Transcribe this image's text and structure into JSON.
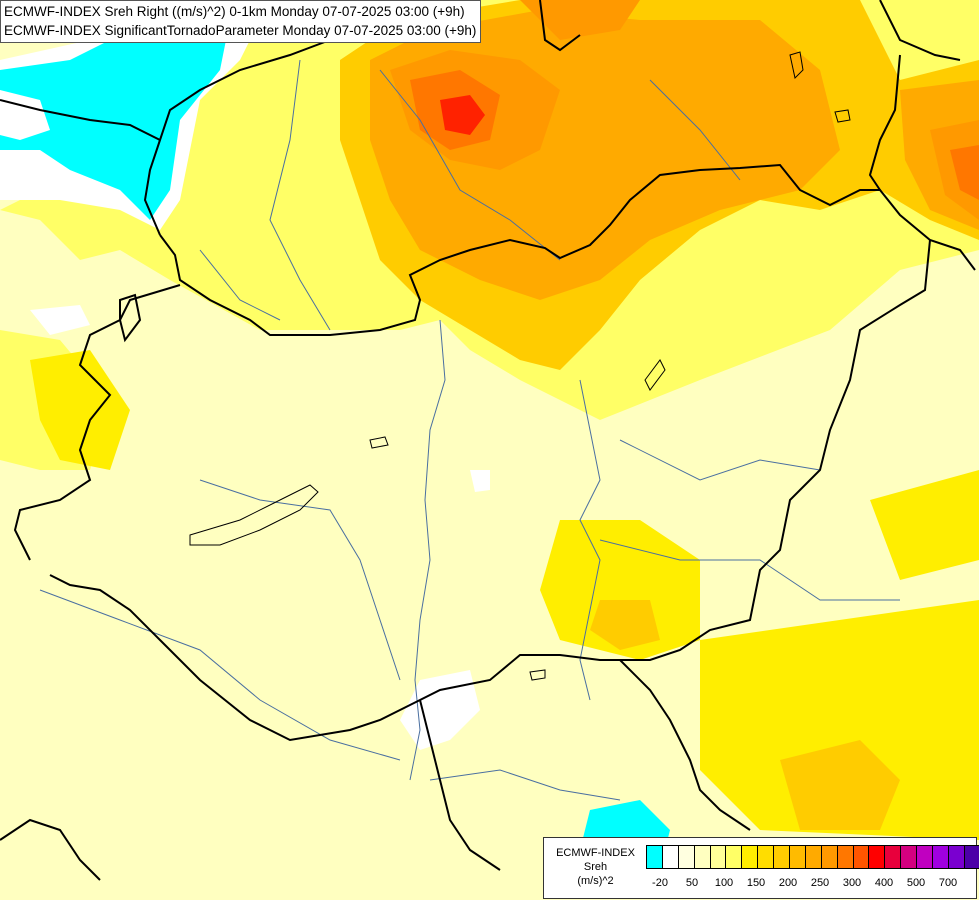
{
  "title_lines": [
    "ECMWF-INDEX Sreh Right ((m/s)^2) 0-1km Monday 07-07-2025 03:00 (+9h)",
    "ECMWF-INDEX SignificantTornadoParameter Monday 07-07-2025 03:00 (+9h)"
  ],
  "legend": {
    "title_lines": [
      "ECMWF-INDEX",
      "Sreh",
      "(m/s)^2"
    ],
    "colors": [
      "#00ffff",
      "#ffffff",
      "#ffffe0",
      "#ffffc0",
      "#ffff99",
      "#ffff66",
      "#ffee00",
      "#ffdd00",
      "#ffcc00",
      "#ffbb00",
      "#ffaa00",
      "#ff9900",
      "#ff7700",
      "#ff5500",
      "#ff0000",
      "#e8003c",
      "#d40080",
      "#c000c0",
      "#a000e0",
      "#7a00d0",
      "#4c00a8",
      "#10006a"
    ],
    "tick_labels": [
      "-20",
      "50",
      "100",
      "150",
      "200",
      "250",
      "300",
      "400",
      "500",
      "700"
    ]
  },
  "fields": [
    {
      "name": "orange-high-north",
      "color": "#ffaa00",
      "level": "200"
    },
    {
      "name": "red-core",
      "color": "#ff2200",
      "level": "300"
    }
  ]
}
